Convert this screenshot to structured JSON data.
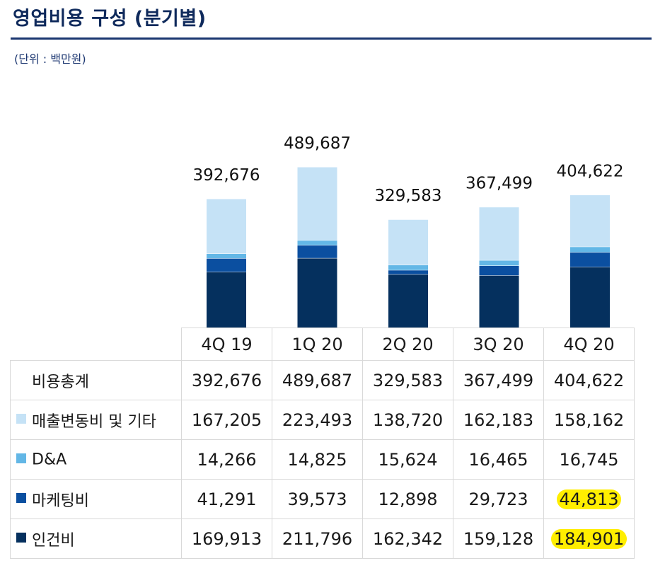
{
  "title": "영업비용 구성 (분기별)",
  "unit": "(단위 : 백만원)",
  "colors": {
    "title": "#0f2a5c",
    "sales_other": "#c5e2f6",
    "da": "#63b7e6",
    "marketing": "#0b4fa0",
    "personnel": "#05305e",
    "highlight": "#ffee00"
  },
  "chart_data": {
    "type": "bar",
    "stacked": true,
    "categories": [
      "4Q 19",
      "1Q 20",
      "2Q 20",
      "3Q 20",
      "4Q 20"
    ],
    "series": [
      {
        "name": "인건비",
        "values": [
          169913,
          211796,
          162342,
          159128,
          184901
        ]
      },
      {
        "name": "마케팅비",
        "values": [
          41291,
          39573,
          12898,
          29723,
          44813
        ]
      },
      {
        "name": "D&A",
        "values": [
          14266,
          14825,
          15624,
          16465,
          16745
        ]
      },
      {
        "name": "매출변동비 및 기타",
        "values": [
          167205,
          223493,
          138720,
          162183,
          158162
        ]
      }
    ],
    "totals_labels": [
      "392,676",
      "489,687",
      "329,583",
      "367,499",
      "404,622"
    ],
    "title": "영업비용 구성 (분기별)",
    "ylabel": "(단위 : 백만원)"
  },
  "table": {
    "header": [
      "4Q 19",
      "1Q 20",
      "2Q 20",
      "3Q 20",
      "4Q 20"
    ],
    "rows": [
      {
        "label": "비용총계",
        "swatch": "",
        "values": [
          "392,676",
          "489,687",
          "329,583",
          "367,499",
          "404,622"
        ],
        "highlight_last": false
      },
      {
        "label": "매출변동비 및 기타",
        "swatch": "#c5e2f6",
        "values": [
          "167,205",
          "223,493",
          "138,720",
          "162,183",
          "158,162"
        ],
        "highlight_last": false
      },
      {
        "label": "D&A",
        "swatch": "#63b7e6",
        "values": [
          "14,266",
          "14,825",
          "15,624",
          "16,465",
          "16,745"
        ],
        "highlight_last": false
      },
      {
        "label": "마케팅비",
        "swatch": "#0b4fa0",
        "values": [
          "41,291",
          "39,573",
          "12,898",
          "29,723",
          "44,813"
        ],
        "highlight_last": true
      },
      {
        "label": "인건비",
        "swatch": "#05305e",
        "values": [
          "169,913",
          "211,796",
          "162,342",
          "159,128",
          "184,901"
        ],
        "highlight_last": true
      }
    ]
  }
}
